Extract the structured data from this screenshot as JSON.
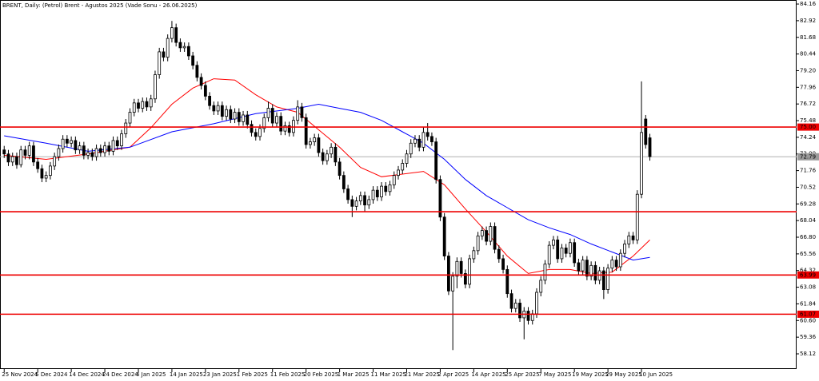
{
  "chart_data": {
    "type": "candlestick",
    "title": "BRENT, Daily:  (Petrol) Brent - Agustos 2025 (Vade Sonu - 26.06.2025)",
    "xlim": [
      -1,
      189
    ],
    "ylim": [
      56.99,
      84.46
    ],
    "yticks": [
      84.16,
      82.92,
      81.68,
      80.44,
      {
        "value": 79.2,
        "label": "79.20"
      },
      77.96,
      76.72,
      75.48,
      74.24,
      {
        "value": 73,
        "label": "73.00"
      },
      71.76,
      70.52,
      69.28,
      68.04,
      {
        "value": 66.8,
        "label": "66.80"
      },
      65.56,
      64.32,
      63.08,
      61.84,
      {
        "value": 60.6,
        "label": "60.60"
      },
      59.36,
      58.12
    ],
    "xticks": [
      {
        "value": 0,
        "label": "25 Nov 2024"
      },
      {
        "value": 8,
        "label": "5 Dec 2024"
      },
      {
        "value": 16,
        "label": "14 Dec 2024"
      },
      {
        "value": 24,
        "label": "24 Dec 2024"
      },
      {
        "value": 32,
        "label": "4 Jan 2025"
      },
      {
        "value": 40,
        "label": "14 Jan 2025"
      },
      {
        "value": 48,
        "label": "23 Jan 2025"
      },
      {
        "value": 56,
        "label": "1 Feb 2025"
      },
      {
        "value": 64,
        "label": "11 Feb 2025"
      },
      {
        "value": 72,
        "label": "20 Feb 2025"
      },
      {
        "value": 80,
        "label": "1 Mar 2025"
      },
      {
        "value": 88,
        "label": "11 Mar 2025"
      },
      {
        "value": 96,
        "label": "21 Mar 2025"
      },
      {
        "value": 104,
        "label": "2 Apr 2025"
      },
      {
        "value": 112,
        "label": "14 Apr 2025"
      },
      {
        "value": 120,
        "label": "25 Apr 2025"
      },
      {
        "value": 128,
        "label": "7 May 2025"
      },
      {
        "value": 136,
        "label": "19 May 2025"
      },
      {
        "value": 144,
        "label": "29 May 2025"
      },
      {
        "value": 152,
        "label": "10 Jun 2025"
      }
    ],
    "candles": [
      [
        73.3,
        73.6,
        72.7,
        73.0
      ],
      [
        73.0,
        73.3,
        72.1,
        72.4
      ],
      [
        72.4,
        73.1,
        72.1,
        72.8
      ],
      [
        72.8,
        73.1,
        71.9,
        72.2
      ],
      [
        72.2,
        73.6,
        72.0,
        73.3
      ],
      [
        73.3,
        73.6,
        72.6,
        72.9
      ],
      [
        72.9,
        73.9,
        72.6,
        73.6
      ],
      [
        73.6,
        73.9,
        72.1,
        72.4
      ],
      [
        72.4,
        72.7,
        71.6,
        71.9
      ],
      [
        71.9,
        72.2,
        70.9,
        71.2
      ],
      [
        71.2,
        71.7,
        70.9,
        71.4
      ],
      [
        71.4,
        72.4,
        71.1,
        72.1
      ],
      [
        72.1,
        73.1,
        71.8,
        72.8
      ],
      [
        72.8,
        73.7,
        72.5,
        73.4
      ],
      [
        73.4,
        74.4,
        73.1,
        74.1
      ],
      [
        74.1,
        74.4,
        73.5,
        73.8
      ],
      [
        73.8,
        74.3,
        73.5,
        74.0
      ],
      [
        74.0,
        74.3,
        73.0,
        73.3
      ],
      [
        73.3,
        73.9,
        73.0,
        73.6
      ],
      [
        73.6,
        73.9,
        72.6,
        72.9
      ],
      [
        72.9,
        73.4,
        72.6,
        73.1
      ],
      [
        73.1,
        73.4,
        72.5,
        72.8
      ],
      [
        72.8,
        73.7,
        72.5,
        73.4
      ],
      [
        73.4,
        73.7,
        72.8,
        73.1
      ],
      [
        73.1,
        73.9,
        72.8,
        73.6
      ],
      [
        73.6,
        73.9,
        72.9,
        73.2
      ],
      [
        73.2,
        74.3,
        72.9,
        74.0
      ],
      [
        74.0,
        74.3,
        73.3,
        73.6
      ],
      [
        73.6,
        74.8,
        73.3,
        74.5
      ],
      [
        74.5,
        75.6,
        74.2,
        75.3
      ],
      [
        75.3,
        76.4,
        75.0,
        76.1
      ],
      [
        76.1,
        77.1,
        75.8,
        76.8
      ],
      [
        76.8,
        77.1,
        76.1,
        76.4
      ],
      [
        76.4,
        77.2,
        76.1,
        76.9
      ],
      [
        76.9,
        77.2,
        76.2,
        76.5
      ],
      [
        76.5,
        77.4,
        76.2,
        77.1
      ],
      [
        77.1,
        79.2,
        76.8,
        78.9
      ],
      [
        78.9,
        80.9,
        78.6,
        80.6
      ],
      [
        80.6,
        80.9,
        79.9,
        80.2
      ],
      [
        80.2,
        81.9,
        79.9,
        81.6
      ],
      [
        81.6,
        82.9,
        81.3,
        82.4
      ],
      [
        82.4,
        82.7,
        81.0,
        81.3
      ],
      [
        81.3,
        81.6,
        80.6,
        80.9
      ],
      [
        80.9,
        81.3,
        80.6,
        81.0
      ],
      [
        81.0,
        81.3,
        80.0,
        80.3
      ],
      [
        80.3,
        80.6,
        79.3,
        79.6
      ],
      [
        79.6,
        79.9,
        78.4,
        78.7
      ],
      [
        78.7,
        79.0,
        77.8,
        78.1
      ],
      [
        78.1,
        78.4,
        77.0,
        77.3
      ],
      [
        77.3,
        77.6,
        76.3,
        76.6
      ],
      [
        76.6,
        76.9,
        75.9,
        76.2
      ],
      [
        76.2,
        76.9,
        75.9,
        76.6
      ],
      [
        76.6,
        76.9,
        75.5,
        75.8
      ],
      [
        75.8,
        76.6,
        75.5,
        76.3
      ],
      [
        76.3,
        76.6,
        75.3,
        75.6
      ],
      [
        75.6,
        76.4,
        75.3,
        76.1
      ],
      [
        76.1,
        76.4,
        75.1,
        75.4
      ],
      [
        75.4,
        76.2,
        75.1,
        75.9
      ],
      [
        75.9,
        76.2,
        74.9,
        75.2
      ],
      [
        75.2,
        75.5,
        74.3,
        74.6
      ],
      [
        74.6,
        74.9,
        74.0,
        74.3
      ],
      [
        74.3,
        75.2,
        74.0,
        74.9
      ],
      [
        74.9,
        76.0,
        74.6,
        75.7
      ],
      [
        75.7,
        76.9,
        75.4,
        76.4
      ],
      [
        76.4,
        76.7,
        75.0,
        75.3
      ],
      [
        75.3,
        76.1,
        75.0,
        75.8
      ],
      [
        75.8,
        76.1,
        74.4,
        74.7
      ],
      [
        74.7,
        75.4,
        74.4,
        75.1
      ],
      [
        75.1,
        75.4,
        74.3,
        74.6
      ],
      [
        74.6,
        75.8,
        74.3,
        75.5
      ],
      [
        75.5,
        77.0,
        75.2,
        76.5
      ],
      [
        76.5,
        76.8,
        75.4,
        75.7
      ],
      [
        75.7,
        76.0,
        73.4,
        73.7
      ],
      [
        73.7,
        74.2,
        73.4,
        73.9
      ],
      [
        73.9,
        74.5,
        73.6,
        74.2
      ],
      [
        74.2,
        74.5,
        72.8,
        73.1
      ],
      [
        73.1,
        73.4,
        72.2,
        72.5
      ],
      [
        72.5,
        73.3,
        72.2,
        73.0
      ],
      [
        73.0,
        73.8,
        72.7,
        73.5
      ],
      [
        73.5,
        73.8,
        72.1,
        72.4
      ],
      [
        72.4,
        72.7,
        71.1,
        71.4
      ],
      [
        71.4,
        71.7,
        70.1,
        70.4
      ],
      [
        70.4,
        70.7,
        69.3,
        69.6
      ],
      [
        69.6,
        69.9,
        68.3,
        69.1
      ],
      [
        69.1,
        69.8,
        68.8,
        69.5
      ],
      [
        69.5,
        70.2,
        69.2,
        69.9
      ],
      [
        69.9,
        70.2,
        68.7,
        69.2
      ],
      [
        69.2,
        69.9,
        68.9,
        69.6
      ],
      [
        69.6,
        70.6,
        69.3,
        70.3
      ],
      [
        70.3,
        70.6,
        69.5,
        69.8
      ],
      [
        69.8,
        70.9,
        69.5,
        70.6
      ],
      [
        70.6,
        70.9,
        69.9,
        70.2
      ],
      [
        70.2,
        71.0,
        69.9,
        70.7
      ],
      [
        70.7,
        71.7,
        70.4,
        71.4
      ],
      [
        71.4,
        72.1,
        71.1,
        71.8
      ],
      [
        71.8,
        72.6,
        71.5,
        72.3
      ],
      [
        72.3,
        73.3,
        72.0,
        73.0
      ],
      [
        73.0,
        74.1,
        72.7,
        73.8
      ],
      [
        73.8,
        74.4,
        73.5,
        74.1
      ],
      [
        74.1,
        74.4,
        73.2,
        73.5
      ],
      [
        73.5,
        75.0,
        73.2,
        74.6
      ],
      [
        74.6,
        75.3,
        74.0,
        74.3
      ],
      [
        74.3,
        74.6,
        73.6,
        73.9
      ],
      [
        73.9,
        74.2,
        70.8,
        71.1
      ],
      [
        71.1,
        71.4,
        68.0,
        68.3
      ],
      [
        68.3,
        68.6,
        65.1,
        65.4
      ],
      [
        65.4,
        65.7,
        62.5,
        62.8
      ],
      [
        62.8,
        64.2,
        58.4,
        63.9
      ],
      [
        63.9,
        65.3,
        63.0,
        65.0
      ],
      [
        65.0,
        65.3,
        63.8,
        64.1
      ],
      [
        64.1,
        64.4,
        63.0,
        63.3
      ],
      [
        63.3,
        65.5,
        63.0,
        65.2
      ],
      [
        65.2,
        66.1,
        64.9,
        65.8
      ],
      [
        65.8,
        67.2,
        65.5,
        66.9
      ],
      [
        66.9,
        67.6,
        66.6,
        67.3
      ],
      [
        67.3,
        67.6,
        66.2,
        66.5
      ],
      [
        66.5,
        67.9,
        66.2,
        67.6
      ],
      [
        67.6,
        67.9,
        65.6,
        65.9
      ],
      [
        65.9,
        66.2,
        64.9,
        65.2
      ],
      [
        65.2,
        65.5,
        64.1,
        64.4
      ],
      [
        64.4,
        64.7,
        62.3,
        62.6
      ],
      [
        62.6,
        62.9,
        61.2,
        61.5
      ],
      [
        61.5,
        62.2,
        61.2,
        61.9
      ],
      [
        61.9,
        62.2,
        60.5,
        60.8
      ],
      [
        60.8,
        61.6,
        59.2,
        61.3
      ],
      [
        61.3,
        61.6,
        60.3,
        60.6
      ],
      [
        60.6,
        61.4,
        60.3,
        61.1
      ],
      [
        61.1,
        63.0,
        60.8,
        62.7
      ],
      [
        62.7,
        63.9,
        62.4,
        63.6
      ],
      [
        63.6,
        65.1,
        63.3,
        64.8
      ],
      [
        64.8,
        66.5,
        64.5,
        66.2
      ],
      [
        66.2,
        66.9,
        65.9,
        66.6
      ],
      [
        66.6,
        66.9,
        64.9,
        65.2
      ],
      [
        65.2,
        66.3,
        64.9,
        66.0
      ],
      [
        66.0,
        66.3,
        65.3,
        65.6
      ],
      [
        65.6,
        66.7,
        65.3,
        66.4
      ],
      [
        66.4,
        66.7,
        64.6,
        64.9
      ],
      [
        64.9,
        65.2,
        64.0,
        64.3
      ],
      [
        64.3,
        65.4,
        64.0,
        65.1
      ],
      [
        65.1,
        65.4,
        63.6,
        63.9
      ],
      [
        63.9,
        65.0,
        63.6,
        64.7
      ],
      [
        64.7,
        65.0,
        63.3,
        63.6
      ],
      [
        63.6,
        64.6,
        63.3,
        64.3
      ],
      [
        64.3,
        64.6,
        62.2,
        62.9
      ],
      [
        62.9,
        64.8,
        62.6,
        64.5
      ],
      [
        64.5,
        65.4,
        64.2,
        65.1
      ],
      [
        65.1,
        65.4,
        64.3,
        64.6
      ],
      [
        64.6,
        65.9,
        64.3,
        65.6
      ],
      [
        65.6,
        66.6,
        65.3,
        66.3
      ],
      [
        66.3,
        67.2,
        66.0,
        66.9
      ],
      [
        66.9,
        67.2,
        66.3,
        66.6
      ],
      [
        66.6,
        70.3,
        66.3,
        70.0
      ],
      [
        70.0,
        78.4,
        69.7,
        74.6
      ],
      [
        75.6,
        75.9,
        73.4,
        73.7
      ],
      [
        74.2,
        74.5,
        72.5,
        72.8
      ]
    ],
    "moving_averages": [
      {
        "color": "#ff0000",
        "x": [
          0,
          10,
          20,
          30,
          35,
          40,
          45,
          50,
          55,
          60,
          65,
          70,
          75,
          80,
          85,
          90,
          95,
          100,
          105,
          110,
          115,
          120,
          125,
          130,
          135,
          140,
          145,
          150,
          154
        ],
        "values": [
          72.9,
          72.6,
          73.0,
          73.5,
          74.95,
          76.7,
          77.9,
          78.6,
          78.5,
          77.4,
          76.5,
          76.1,
          74.8,
          73.5,
          72.0,
          71.3,
          71.5,
          71.7,
          70.7,
          68.9,
          67.2,
          65.4,
          64.1,
          64.4,
          64.4,
          64.1,
          64.2,
          65.4,
          66.6
        ]
      },
      {
        "color": "#0000ff",
        "x": [
          0,
          10,
          20,
          30,
          40,
          50,
          60,
          70,
          75,
          80,
          85,
          90,
          95,
          100,
          105,
          110,
          115,
          120,
          125,
          130,
          135,
          140,
          145,
          150,
          154
        ],
        "values": [
          74.35,
          73.8,
          73.2,
          73.5,
          74.65,
          75.25,
          76.0,
          76.4,
          76.7,
          76.4,
          76.1,
          75.5,
          74.65,
          73.8,
          72.6,
          71.1,
          69.9,
          69.0,
          68.1,
          67.5,
          67.0,
          66.3,
          65.7,
          65.1,
          65.3
        ]
      }
    ],
    "hlines": [
      {
        "value": 75,
        "label": "75.00"
      },
      68.7,
      {
        "value": 63.99,
        "label": "63.99"
      },
      {
        "value": 61.07,
        "label": "61.07"
      }
    ],
    "hline_color": "#ee0000",
    "last_price": {
      "value": 72.79,
      "label": "72.79"
    }
  }
}
